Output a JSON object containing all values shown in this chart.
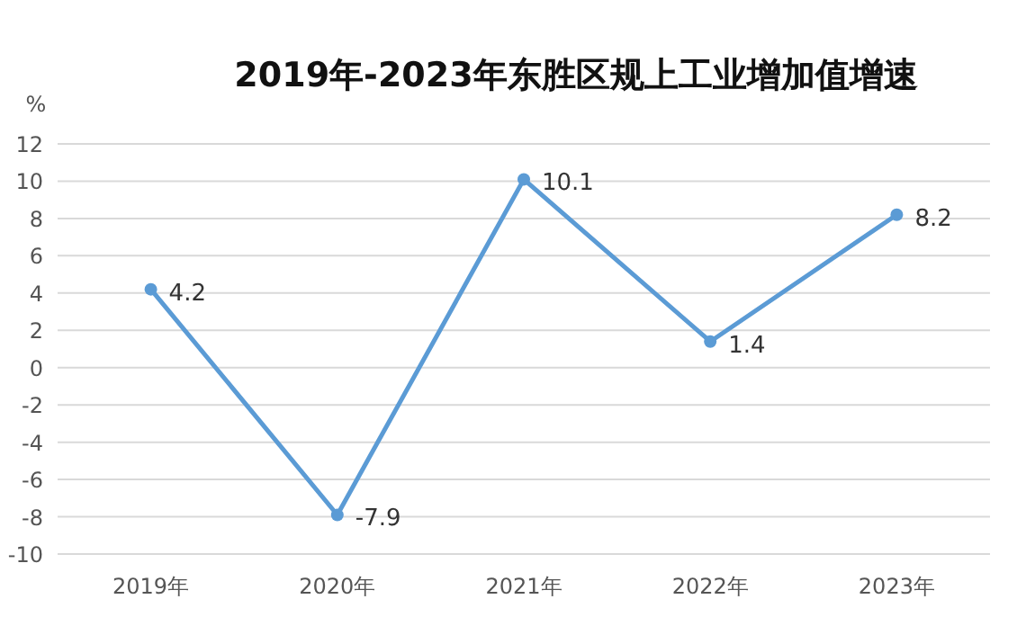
{
  "chart_data": {
    "type": "line",
    "title": "2019年-2023年东胜区规上工业增加值增速",
    "ylabel": "%",
    "categories": [
      "2019年",
      "2020年",
      "2021年",
      "2022年",
      "2023年"
    ],
    "series": [
      {
        "color": "#5b9bd5",
        "values": [
          4.2,
          -7.9,
          10.1,
          1.4,
          8.2
        ]
      }
    ],
    "ylim": [
      -10,
      12
    ],
    "yticks": [
      -10,
      -8,
      -6,
      -4,
      -2,
      0,
      2,
      4,
      6,
      8,
      10,
      12
    ],
    "grid": "y",
    "marker": "circle",
    "data_labels": true
  }
}
